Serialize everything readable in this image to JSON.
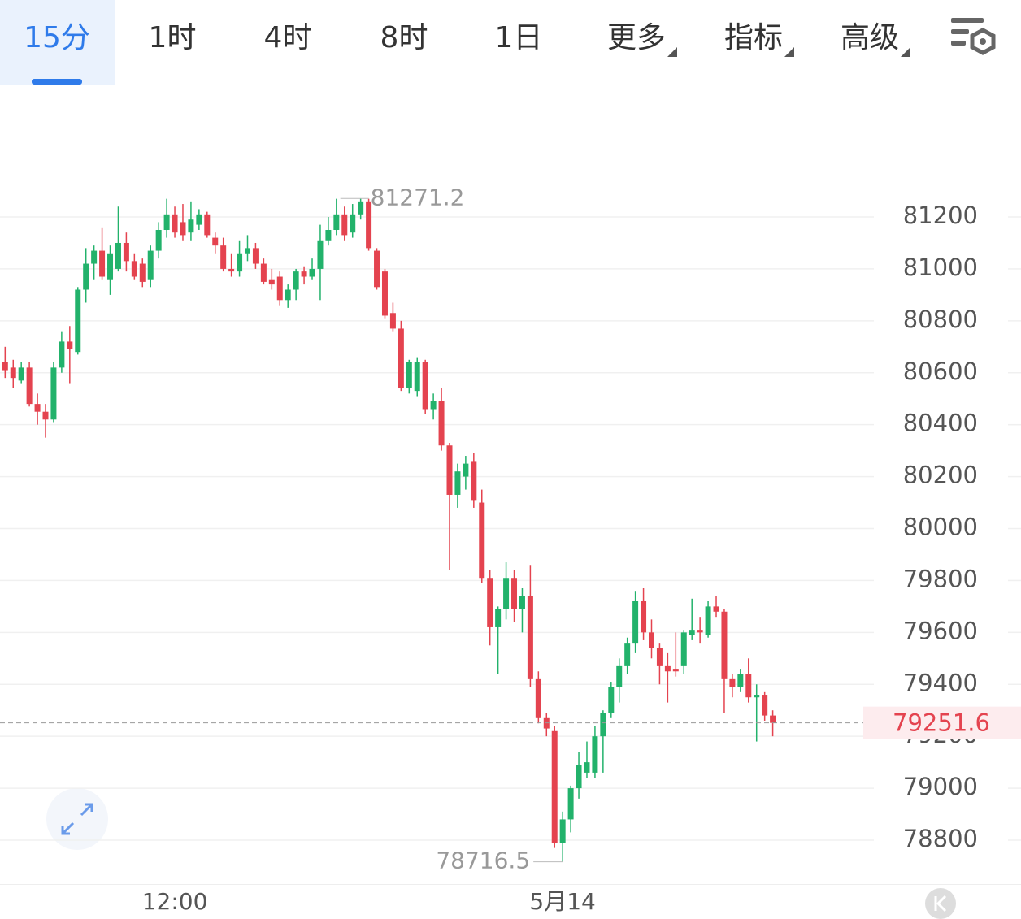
{
  "toolbar": {
    "tabs": [
      "15分",
      "1时",
      "4时",
      "8时",
      "1日",
      "更多",
      "指标",
      "高级"
    ],
    "active": 0,
    "dropdown_from": 5
  },
  "chart_data": {
    "type": "candlestick",
    "categories": [
      null,
      null,
      null,
      null,
      null,
      null,
      null,
      null,
      null,
      null,
      null,
      null,
      null,
      null,
      null,
      null,
      null,
      null,
      null,
      null,
      null,
      "12:00",
      null,
      null,
      null,
      null,
      null,
      null,
      null,
      null,
      null,
      null,
      null,
      null,
      null,
      null,
      null,
      null,
      null,
      null,
      null,
      null,
      null,
      null,
      null,
      null,
      null,
      null,
      null,
      null,
      null,
      null,
      null,
      null,
      null,
      null,
      null,
      null,
      null,
      null,
      null,
      null,
      null,
      null,
      null,
      null,
      null,
      null,
      null,
      "5月14",
      null,
      null,
      null,
      null,
      null,
      null,
      null,
      null,
      null,
      null,
      null,
      null,
      null,
      null,
      null,
      null,
      null,
      null,
      null,
      null,
      null,
      null,
      null,
      null,
      null,
      null
    ],
    "open": [
      80640,
      80620,
      80570,
      80620,
      80480,
      80450,
      80420,
      80620,
      80720,
      80680,
      80920,
      81020,
      81070,
      80960,
      81000,
      81100,
      81030,
      81020,
      80960,
      81070,
      81150,
      81210,
      81180,
      81140,
      81170,
      81210,
      81120,
      81090,
      81000,
      80990,
      81060,
      81080,
      81020,
      80960,
      80970,
      80880,
      80920,
      80990,
      80970,
      81000,
      81110,
      81150,
      81210,
      81140,
      81210,
      81260,
      81070,
      80990,
      80830,
      80770,
      80540,
      80530,
      80640,
      80460,
      80490,
      80320,
      80130,
      80200,
      80260,
      80100,
      79810,
      79620,
      79690,
      79810,
      79690,
      79740,
      79420,
      79270,
      79220,
      78790,
      78880,
      79000,
      79060,
      79060,
      79200,
      79290,
      79390,
      79470,
      79560,
      79720,
      79600,
      79540,
      79470,
      79460,
      79470,
      79590,
      79610,
      79590,
      79700,
      79680,
      79420,
      79390,
      79440,
      79350,
      79360,
      79280
    ],
    "high": [
      80700,
      80650,
      80640,
      80640,
      80520,
      80480,
      80640,
      80760,
      80780,
      80930,
      81080,
      81090,
      81160,
      81090,
      81240,
      81140,
      81060,
      81040,
      81090,
      81180,
      81270,
      81240,
      81250,
      81260,
      81230,
      81220,
      81140,
      81120,
      81060,
      81110,
      81130,
      81100,
      81040,
      81000,
      80990,
      80940,
      81000,
      81010,
      81040,
      81170,
      81200,
      81270,
      81240,
      81250,
      81271.2,
      81270,
      81080,
      81000,
      80870,
      80800,
      80650,
      80660,
      80650,
      80520,
      80540,
      80330,
      80250,
      80280,
      80290,
      80150,
      79840,
      79700,
      79870,
      79840,
      79770,
      79860,
      79450,
      79290,
      79240,
      78910,
      79010,
      79140,
      79180,
      79240,
      79300,
      79410,
      79500,
      79580,
      79760,
      79770,
      79650,
      79560,
      79520,
      79600,
      79610,
      79730,
      79660,
      79720,
      79740,
      79690,
      79440,
      79460,
      79500,
      79400,
      79370,
      79300
    ],
    "low": [
      80580,
      80540,
      80560,
      80470,
      80400,
      80350,
      80410,
      80600,
      80560,
      80670,
      80870,
      80960,
      80960,
      80900,
      80990,
      80990,
      80960,
      80930,
      80930,
      81040,
      81120,
      81120,
      81110,
      81110,
      81150,
      81120,
      81060,
      80990,
      80970,
      80970,
      81030,
      81000,
      80940,
      80920,
      80860,
      80850,
      80880,
      80940,
      80960,
      80880,
      81090,
      81130,
      81110,
      81120,
      81190,
      81070,
      80920,
      80810,
      80760,
      80530,
      80520,
      80510,
      80440,
      80420,
      80300,
      79840,
      80080,
      80150,
      80080,
      79790,
      79550,
      79440,
      79650,
      79640,
      79600,
      79390,
      79250,
      79200,
      78770,
      78716.5,
      78830,
      78960,
      79040,
      79040,
      79060,
      79270,
      79330,
      79440,
      79520,
      79570,
      79500,
      79400,
      79330,
      79430,
      79440,
      79570,
      79560,
      79580,
      79660,
      79290,
      79350,
      79370,
      79330,
      79180,
      79260,
      79200
    ],
    "close": [
      80610,
      80580,
      80620,
      80480,
      80450,
      80420,
      80620,
      80720,
      80690,
      80920,
      81020,
      81070,
      80970,
      81060,
      81100,
      81030,
      80970,
      80950,
      81070,
      81150,
      81210,
      81140,
      81130,
      81190,
      81210,
      81130,
      81090,
      81000,
      80990,
      81060,
      81080,
      81020,
      80950,
      80940,
      80880,
      80920,
      80990,
      80970,
      81000,
      81110,
      81150,
      81210,
      81130,
      81210,
      81260,
      81080,
      80930,
      80820,
      80770,
      80540,
      80640,
      80640,
      80460,
      80490,
      80320,
      80130,
      80220,
      80250,
      80110,
      79810,
      79620,
      79690,
      79810,
      79690,
      79740,
      79420,
      79270,
      79230,
      78790,
      78880,
      79000,
      79090,
      79100,
      79200,
      79290,
      79390,
      79470,
      79560,
      79720,
      79600,
      79540,
      79470,
      79450,
      79450,
      79600,
      79610,
      79600,
      79700,
      79680,
      79420,
      79390,
      79440,
      79350,
      79360,
      79280,
      79251.6
    ],
    "up_color": "#22b26b",
    "down_color": "#e4434f",
    "ylim": [
      78631,
      81707
    ],
    "yticks": [
      78800,
      79000,
      79200,
      79400,
      79600,
      79800,
      80000,
      80200,
      80400,
      80600,
      80800,
      81000,
      81200
    ],
    "grid": true
  }
}
